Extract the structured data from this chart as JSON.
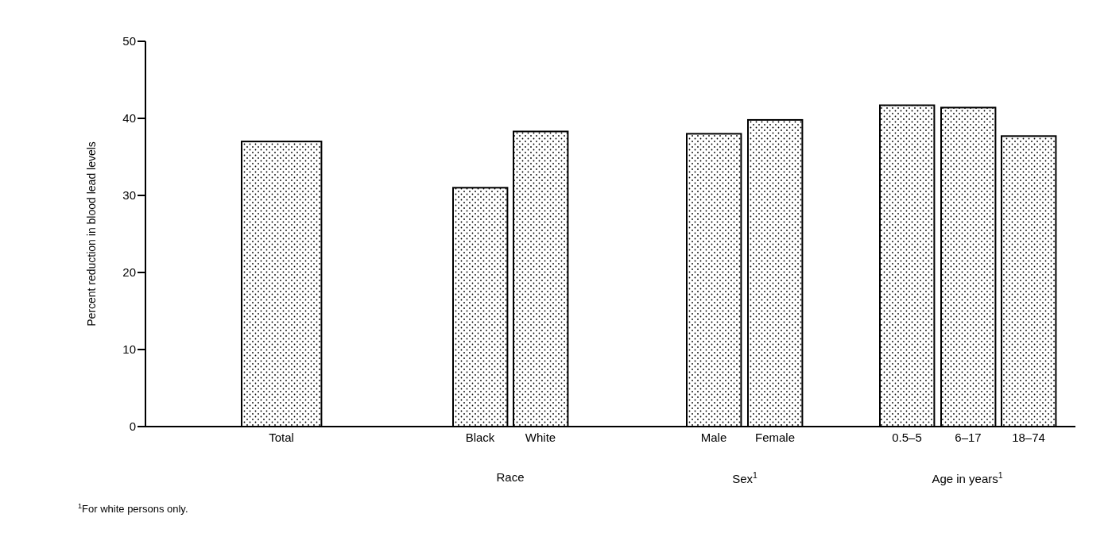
{
  "chart_data": {
    "type": "bar",
    "ylabel": "Percent reduction in blood lead levels",
    "categories": [
      "Total",
      "Black",
      "White",
      "Male",
      "Female",
      "0.5–5",
      "6–17",
      "18–74"
    ],
    "values": [
      37,
      31,
      38.3,
      38,
      39.8,
      41.7,
      41.4,
      37.7
    ],
    "color": "#000000",
    "ylim": [
      0,
      50
    ],
    "yticks": [
      0,
      10,
      20,
      30,
      40,
      50
    ],
    "annotations": [
      "Race",
      "Sex$^{1}$",
      "Age in years$^{1}$",
      "$^{1}$For white persons only."
    ]
  }
}
